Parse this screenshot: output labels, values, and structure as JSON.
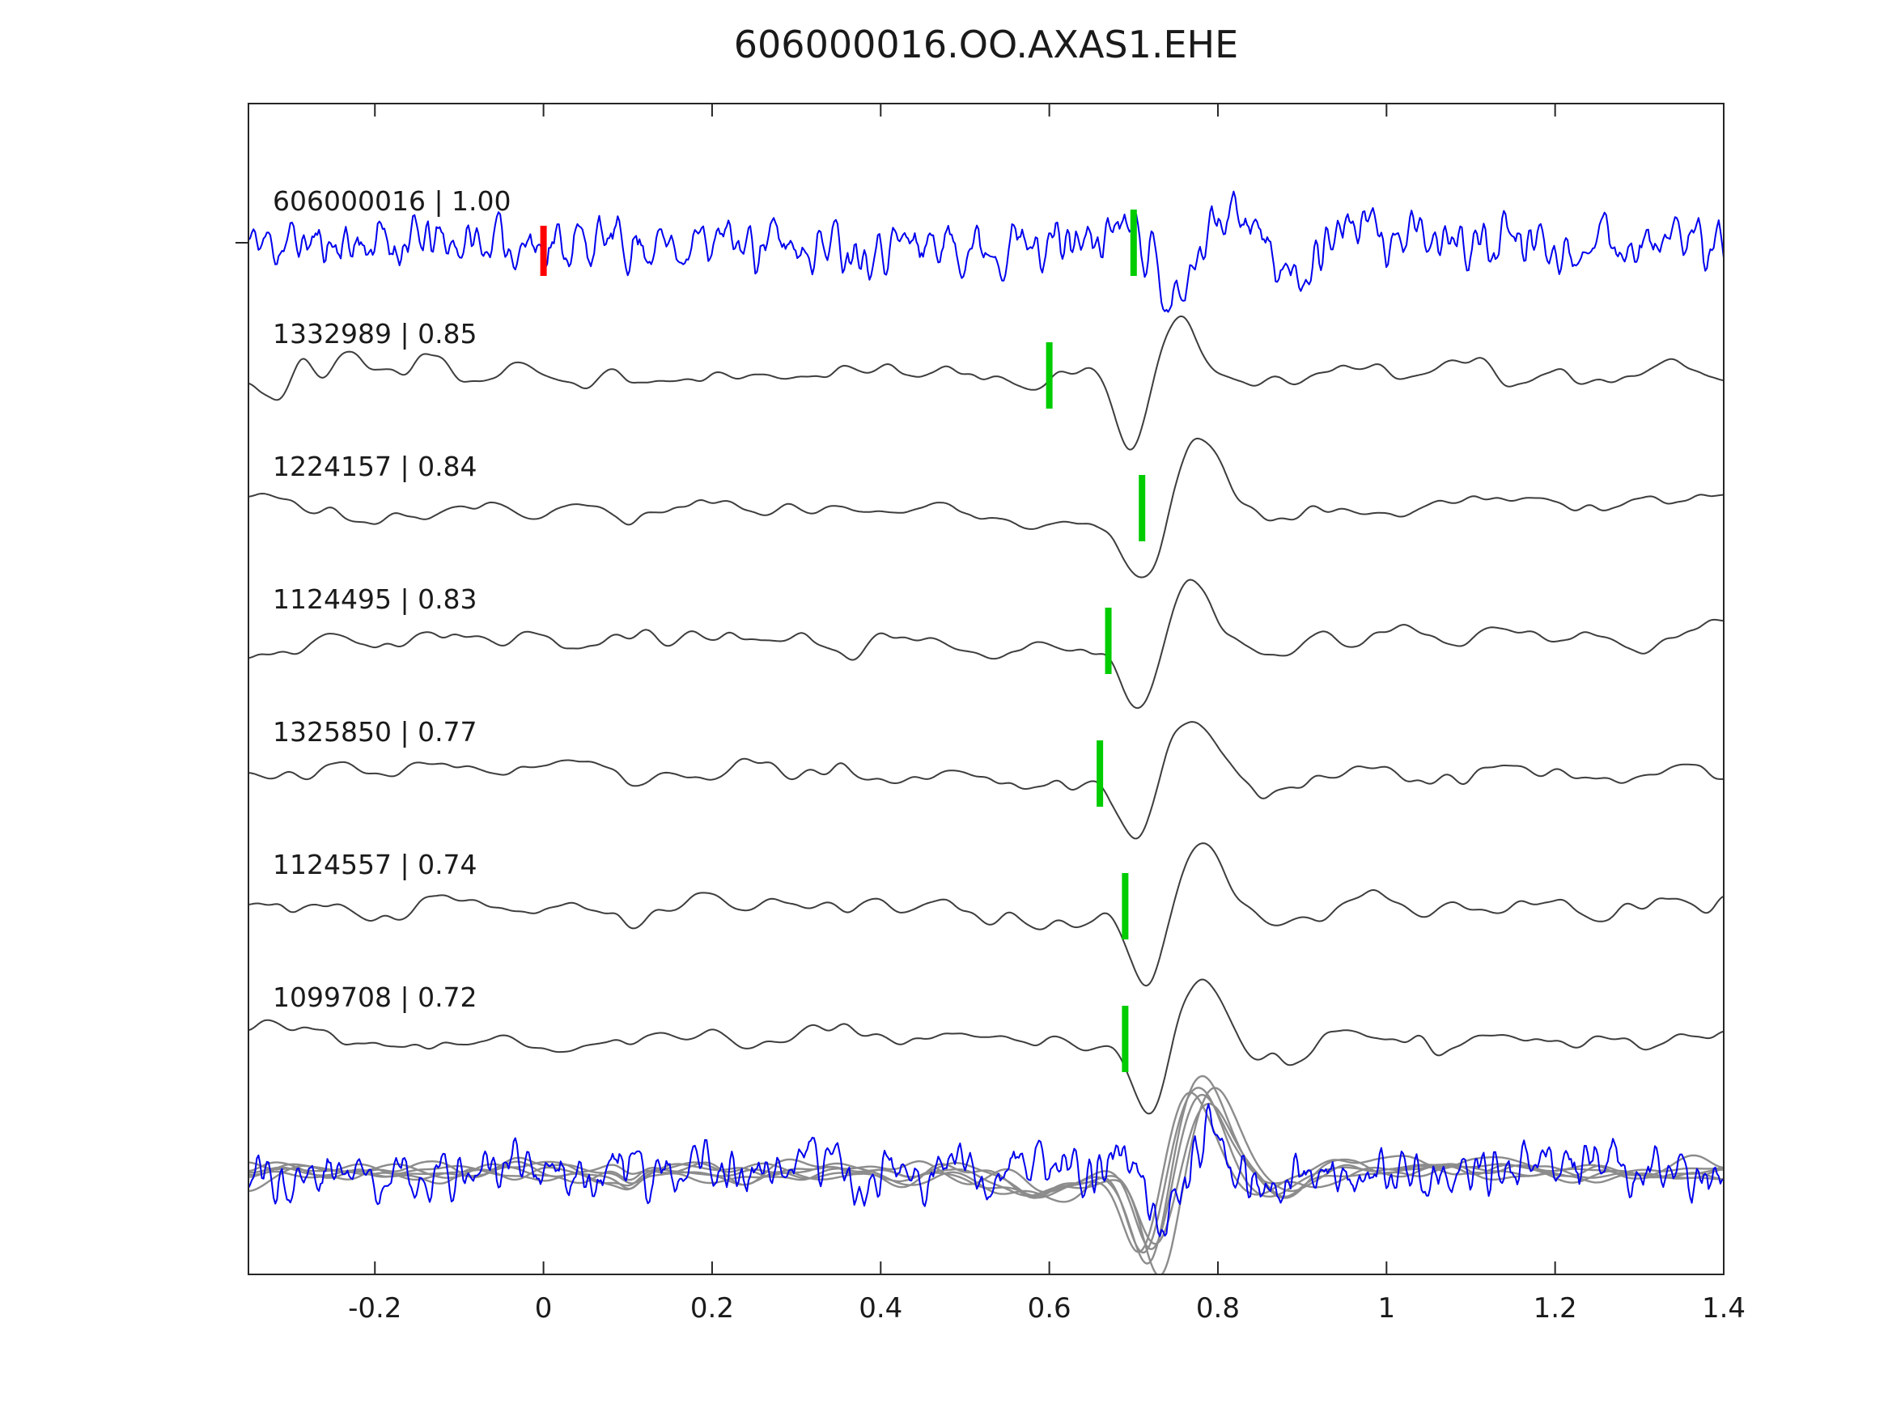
{
  "chart_data": {
    "type": "line",
    "title": "606000016.OO.AXAS1.EHE",
    "xlabel": "",
    "ylabel": "",
    "xlim": [
      -0.35,
      1.4
    ],
    "x_ticks": [
      -0.2,
      0,
      0.2,
      0.4,
      0.6,
      0.8,
      1.0,
      1.2,
      1.4
    ],
    "x_tick_labels": [
      "-0.2",
      "0",
      "0.2",
      "0.4",
      "0.6",
      "0.8",
      "1",
      "1.2",
      "1.4"
    ],
    "grid": false,
    "legend_position": "none",
    "colors": {
      "target": "#0000ee",
      "template": "#3d3d3d",
      "overlay": "#8c8c8c",
      "pick": "#00cc00",
      "origin_marker": "#ff0000",
      "axis": "#262626",
      "text": "#1a1a1a"
    },
    "traces": [
      {
        "role": "target",
        "id": "606000016",
        "cc": "1.00",
        "label": "606000016 | 1.00",
        "picks": [
          {
            "kind": "origin",
            "t": 0.0,
            "color": "#ff0000"
          },
          {
            "kind": "pick",
            "t": 0.7,
            "color": "#00cc00"
          }
        ]
      },
      {
        "role": "template",
        "id": "1332989",
        "cc": "0.85",
        "label": "1332989 | 0.85",
        "picks": [
          {
            "kind": "pick",
            "t": 0.6,
            "color": "#00cc00"
          }
        ]
      },
      {
        "role": "template",
        "id": "1224157",
        "cc": "0.84",
        "label": "1224157 | 0.84",
        "picks": [
          {
            "kind": "pick",
            "t": 0.71,
            "color": "#00cc00"
          }
        ]
      },
      {
        "role": "template",
        "id": "1124495",
        "cc": "0.83",
        "label": "1124495 | 0.83",
        "picks": [
          {
            "kind": "pick",
            "t": 0.67,
            "color": "#00cc00"
          }
        ]
      },
      {
        "role": "template",
        "id": "1325850",
        "cc": "0.77",
        "label": "1325850 | 0.77",
        "picks": [
          {
            "kind": "pick",
            "t": 0.66,
            "color": "#00cc00"
          }
        ]
      },
      {
        "role": "template",
        "id": "1124557",
        "cc": "0.74",
        "label": "1124557 | 0.74",
        "picks": [
          {
            "kind": "pick",
            "t": 0.69,
            "color": "#00cc00"
          }
        ]
      },
      {
        "role": "template",
        "id": "1099708",
        "cc": "0.72",
        "label": "1099708 | 0.72",
        "picks": [
          {
            "kind": "pick",
            "t": 0.69,
            "color": "#00cc00"
          }
        ]
      },
      {
        "role": "overlay",
        "id": "",
        "cc": "",
        "label": "",
        "picks": []
      }
    ]
  }
}
